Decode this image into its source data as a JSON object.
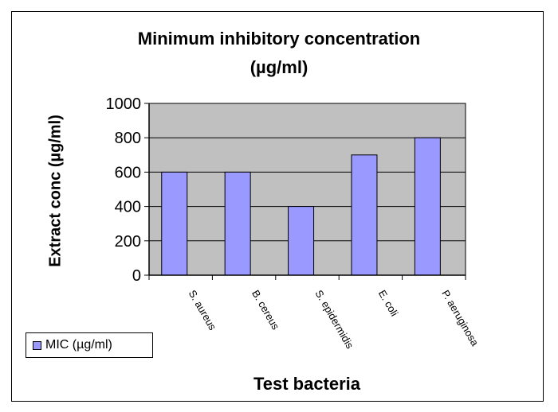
{
  "chart_data": {
    "type": "bar",
    "title": [
      "Minimum inhibitory concentration",
      "(µg/ml)"
    ],
    "xlabel": "Test bacteria",
    "ylabel": "Extract conc (µg/ml)",
    "categories": [
      "S. aureus",
      "B. cereus",
      "S. epidermidis",
      "E. coli",
      "P. aeruginosa"
    ],
    "series": [
      {
        "name": "MIC (µg/ml)",
        "values": [
          600,
          600,
          400,
          700,
          800
        ]
      }
    ],
    "ylim": [
      0,
      1000
    ],
    "yticks": [
      "0",
      "200",
      "400",
      "600",
      "800",
      "1000"
    ],
    "grid": true,
    "legend_position": "bottom-left",
    "colors": {
      "bar": "#9999ff",
      "plot_background": "#c0c0c0"
    }
  }
}
